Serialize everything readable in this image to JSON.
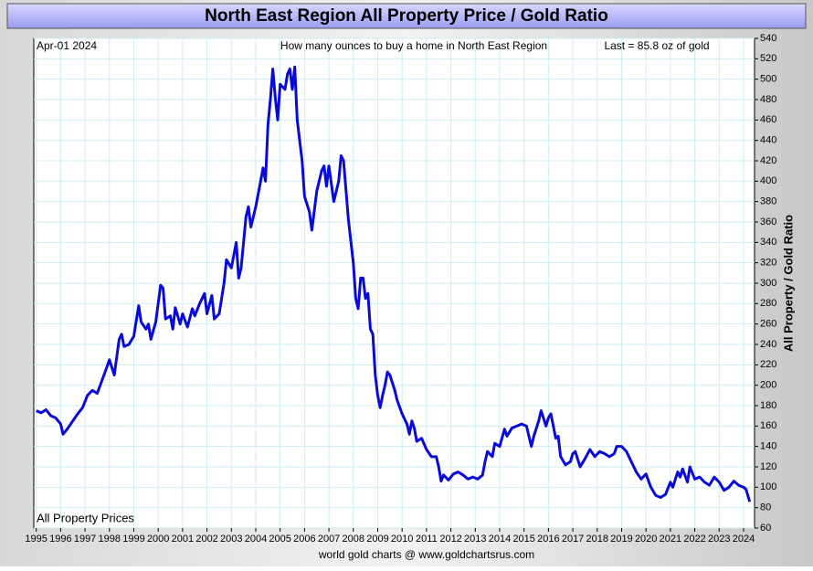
{
  "chart_data": {
    "type": "line",
    "title": "North East Region All Property Price / Gold Ratio",
    "date_label": "Apr-01  2024",
    "subtitle": "How many ounces to buy a home in North East Region",
    "last_label": "Last = 85.8 oz of gold",
    "y_label": "All Property / Gold Ratio",
    "footer": "world gold charts @ www.goldchartsrus.com",
    "grid": true,
    "xlim": [
      1994.9,
      2024.45
    ],
    "ylim": [
      60,
      540
    ],
    "xticks": [
      1995,
      1996,
      1997,
      1998,
      1999,
      2000,
      2001,
      2002,
      2003,
      2004,
      2005,
      2006,
      2007,
      2008,
      2009,
      2010,
      2011,
      2012,
      2013,
      2014,
      2015,
      2016,
      2017,
      2018,
      2019,
      2020,
      2021,
      2022,
      2023,
      2024
    ],
    "yticks": [
      60,
      80,
      100,
      120,
      140,
      160,
      180,
      200,
      220,
      240,
      260,
      280,
      300,
      320,
      340,
      360,
      380,
      400,
      420,
      440,
      460,
      480,
      500,
      520,
      540
    ],
    "x": [
      1995.0,
      1995.2,
      1995.4,
      1995.6,
      1995.8,
      1996.0,
      1996.1,
      1996.3,
      1996.5,
      1996.7,
      1996.9,
      1997.1,
      1997.3,
      1997.5,
      1997.7,
      1997.9,
      1998.0,
      1998.2,
      1998.4,
      1998.5,
      1998.6,
      1998.8,
      1999.0,
      1999.2,
      1999.3,
      1999.5,
      1999.6,
      1999.7,
      1999.9,
      2000.1,
      2000.2,
      2000.3,
      2000.5,
      2000.6,
      2000.7,
      2000.9,
      2001.0,
      2001.2,
      2001.4,
      2001.5,
      2001.7,
      2001.9,
      2002.0,
      2002.2,
      2002.3,
      2002.5,
      2002.7,
      2002.8,
      2003.0,
      2003.2,
      2003.3,
      2003.4,
      2003.6,
      2003.7,
      2003.8,
      2004.0,
      2004.2,
      2004.3,
      2004.4,
      2004.5,
      2004.6,
      2004.7,
      2004.8,
      2004.9,
      2005.0,
      2005.2,
      2005.3,
      2005.4,
      2005.5,
      2005.6,
      2005.7,
      2005.9,
      2006.0,
      2006.2,
      2006.3,
      2006.5,
      2006.7,
      2006.8,
      2006.9,
      2007.0,
      2007.2,
      2007.4,
      2007.5,
      2007.6,
      2007.8,
      2008.0,
      2008.1,
      2008.2,
      2008.3,
      2008.4,
      2008.5,
      2008.6,
      2008.7,
      2008.8,
      2008.9,
      2009.0,
      2009.1,
      2009.2,
      2009.3,
      2009.4,
      2009.5,
      2009.7,
      2009.8,
      2010.0,
      2010.2,
      2010.3,
      2010.4,
      2010.5,
      2010.6,
      2010.8,
      2011.0,
      2011.2,
      2011.4,
      2011.5,
      2011.6,
      2011.7,
      2011.9,
      2012.1,
      2012.3,
      2012.5,
      2012.7,
      2012.9,
      2013.1,
      2013.3,
      2013.4,
      2013.5,
      2013.7,
      2013.8,
      2014.0,
      2014.2,
      2014.3,
      2014.5,
      2014.7,
      2014.9,
      2015.1,
      2015.3,
      2015.4,
      2015.6,
      2015.7,
      2015.9,
      2016.0,
      2016.1,
      2016.3,
      2016.4,
      2016.5,
      2016.7,
      2016.9,
      2017.0,
      2017.1,
      2017.3,
      2017.5,
      2017.7,
      2017.9,
      2018.1,
      2018.3,
      2018.5,
      2018.7,
      2018.8,
      2019.0,
      2019.2,
      2019.4,
      2019.6,
      2019.8,
      2020.0,
      2020.2,
      2020.4,
      2020.6,
      2020.8,
      2021.0,
      2021.1,
      2021.3,
      2021.4,
      2021.5,
      2021.7,
      2021.8,
      2022.0,
      2022.2,
      2022.4,
      2022.6,
      2022.8,
      2023.0,
      2023.2,
      2023.4,
      2023.6,
      2023.8,
      2024.0,
      2024.1,
      2024.2,
      2024.25
    ],
    "series": [
      {
        "name": "All Property Prices",
        "color": "#0a0ad8",
        "values": [
          175,
          173,
          176,
          170,
          168,
          162,
          152,
          158,
          165,
          172,
          178,
          190,
          195,
          192,
          205,
          218,
          225,
          210,
          245,
          250,
          238,
          240,
          248,
          278,
          262,
          255,
          260,
          245,
          262,
          298,
          295,
          265,
          268,
          255,
          276,
          260,
          270,
          257,
          275,
          268,
          280,
          290,
          270,
          288,
          265,
          270,
          300,
          323,
          315,
          340,
          305,
          315,
          365,
          375,
          355,
          375,
          400,
          413,
          400,
          455,
          480,
          510,
          482,
          460,
          495,
          490,
          505,
          510,
          490,
          512,
          460,
          420,
          385,
          370,
          352,
          390,
          410,
          415,
          395,
          415,
          380,
          400,
          425,
          420,
          362,
          320,
          285,
          275,
          305,
          305,
          285,
          290,
          255,
          250,
          210,
          190,
          178,
          190,
          200,
          213,
          210,
          195,
          185,
          172,
          162,
          152,
          165,
          158,
          145,
          148,
          137,
          130,
          130,
          120,
          106,
          112,
          107,
          113,
          115,
          112,
          108,
          110,
          108,
          112,
          125,
          135,
          130,
          143,
          140,
          157,
          150,
          158,
          160,
          162,
          160,
          140,
          150,
          165,
          175,
          160,
          168,
          172,
          148,
          150,
          130,
          122,
          125,
          133,
          135,
          120,
          128,
          137,
          130,
          135,
          133,
          130,
          133,
          140,
          140,
          135,
          125,
          115,
          108,
          113,
          100,
          92,
          90,
          93,
          105,
          100,
          115,
          110,
          118,
          105,
          120,
          108,
          110,
          105,
          102,
          110,
          105,
          97,
          100,
          106,
          102,
          100,
          98,
          90,
          85.8
        ]
      }
    ]
  }
}
